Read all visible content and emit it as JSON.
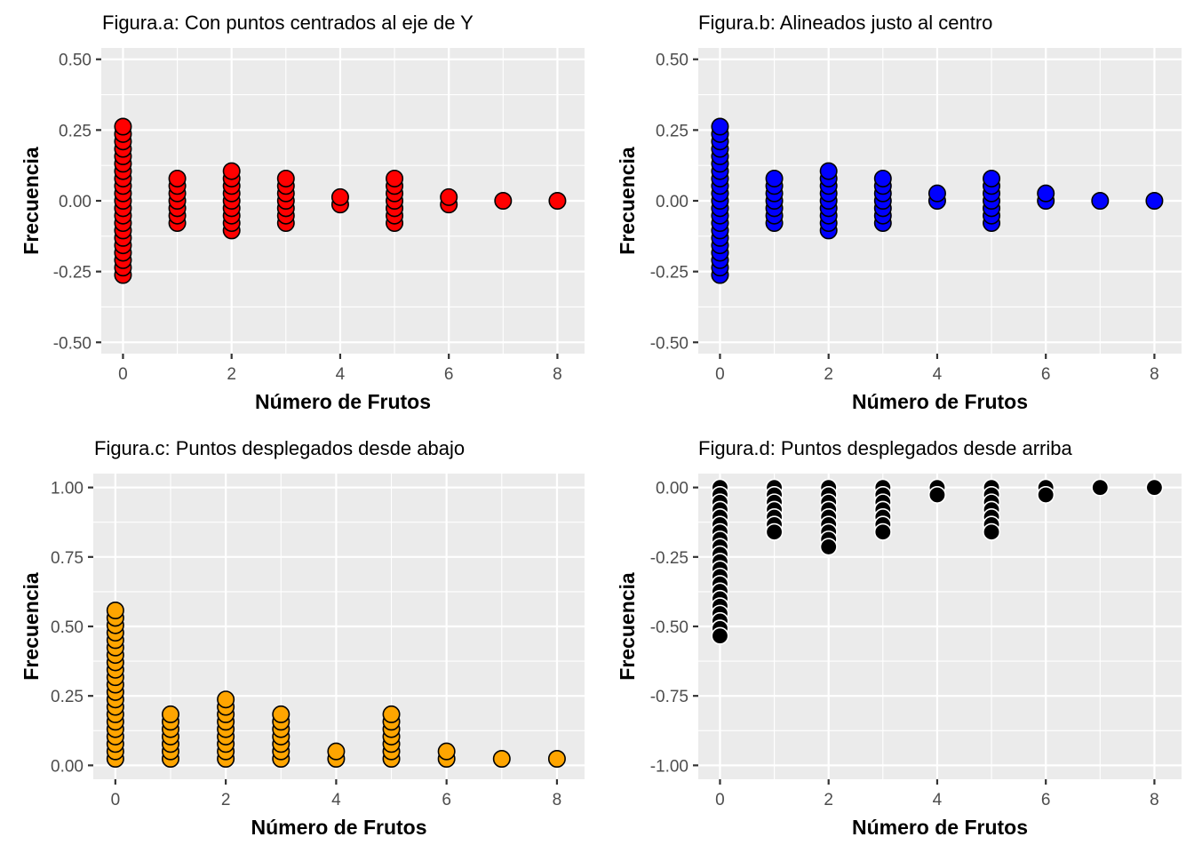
{
  "chart_data": [
    {
      "type": "scatter",
      "title": "Figura.a: Con puntos centrados al eje de Y",
      "xlabel": "Número de Frutos",
      "ylabel": "Frecuencia",
      "xlim": [
        -0.4,
        8.5
      ],
      "ylim": [
        -0.54,
        0.54
      ],
      "xticks": [
        0,
        2,
        4,
        6,
        8
      ],
      "xtick_labels": [
        "0",
        "2",
        "4",
        "6",
        "8"
      ],
      "yticks": [
        -0.5,
        -0.25,
        0,
        0.25,
        0.5
      ],
      "ytick_labels": [
        "-0.50",
        "-0.25",
        "0.00",
        "0.25",
        "0.50"
      ],
      "grid": true,
      "fill": "#ff0000",
      "stroke": "#000000",
      "stack": "center",
      "counts": [
        {
          "x": 0,
          "n": 21
        },
        {
          "x": 1,
          "n": 7
        },
        {
          "x": 2,
          "n": 9
        },
        {
          "x": 3,
          "n": 7
        },
        {
          "x": 4,
          "n": 2
        },
        {
          "x": 5,
          "n": 7
        },
        {
          "x": 6,
          "n": 2
        },
        {
          "x": 7,
          "n": 1
        },
        {
          "x": 8,
          "n": 1
        }
      ]
    },
    {
      "type": "scatter",
      "title": "Figura.b: Alineados justo al centro",
      "xlabel": "Número de Frutos",
      "ylabel": "Frecuencia",
      "xlim": [
        -0.4,
        8.5
      ],
      "ylim": [
        -0.54,
        0.54
      ],
      "xticks": [
        0,
        2,
        4,
        6,
        8
      ],
      "xtick_labels": [
        "0",
        "2",
        "4",
        "6",
        "8"
      ],
      "yticks": [
        -0.5,
        -0.25,
        0,
        0.25,
        0.5
      ],
      "ytick_labels": [
        "-0.50",
        "-0.25",
        "0.00",
        "0.25",
        "0.50"
      ],
      "grid": true,
      "fill": "#0000ff",
      "stroke": "#000000",
      "stack": "centerwhole",
      "counts": [
        {
          "x": 0,
          "n": 21
        },
        {
          "x": 1,
          "n": 7
        },
        {
          "x": 2,
          "n": 9
        },
        {
          "x": 3,
          "n": 7
        },
        {
          "x": 4,
          "n": 2
        },
        {
          "x": 5,
          "n": 7
        },
        {
          "x": 6,
          "n": 2
        },
        {
          "x": 7,
          "n": 1
        },
        {
          "x": 8,
          "n": 1
        }
      ]
    },
    {
      "type": "scatter",
      "title": "Figura.c: Puntos desplegados desde abajo",
      "xlabel": "Número de Frutos",
      "ylabel": "Frecuencia",
      "xlim": [
        -0.4,
        8.5
      ],
      "ylim": [
        -0.05,
        1.05
      ],
      "xticks": [
        0,
        2,
        4,
        6,
        8
      ],
      "xtick_labels": [
        "0",
        "2",
        "4",
        "6",
        "8"
      ],
      "yticks": [
        0,
        0.25,
        0.5,
        0.75,
        1.0
      ],
      "ytick_labels": [
        "0.00",
        "0.25",
        "0.50",
        "0.75",
        "1.00"
      ],
      "grid": true,
      "fill": "#ffa500",
      "stroke": "#000000",
      "stack": "up",
      "counts": [
        {
          "x": 0,
          "n": 21
        },
        {
          "x": 1,
          "n": 7
        },
        {
          "x": 2,
          "n": 9
        },
        {
          "x": 3,
          "n": 7
        },
        {
          "x": 4,
          "n": 2
        },
        {
          "x": 5,
          "n": 7
        },
        {
          "x": 6,
          "n": 2
        },
        {
          "x": 7,
          "n": 1
        },
        {
          "x": 8,
          "n": 1
        }
      ]
    },
    {
      "type": "scatter",
      "title": "Figura.d: Puntos desplegados desde arriba",
      "xlabel": "Número de Frutos",
      "ylabel": "Frecuencia",
      "xlim": [
        -0.4,
        8.5
      ],
      "ylim": [
        -1.05,
        0.05
      ],
      "xticks": [
        0,
        2,
        4,
        6,
        8
      ],
      "xtick_labels": [
        "0",
        "2",
        "4",
        "6",
        "8"
      ],
      "yticks": [
        -1.0,
        -0.75,
        -0.5,
        -0.25,
        0
      ],
      "ytick_labels": [
        "-1.00",
        "-0.75",
        "-0.50",
        "-0.25",
        "0.00"
      ],
      "grid": true,
      "fill": "#000000",
      "stroke": "#ffffff",
      "stack": "down",
      "counts": [
        {
          "x": 0,
          "n": 21
        },
        {
          "x": 1,
          "n": 7
        },
        {
          "x": 2,
          "n": 9
        },
        {
          "x": 3,
          "n": 7
        },
        {
          "x": 4,
          "n": 2
        },
        {
          "x": 5,
          "n": 7
        },
        {
          "x": 6,
          "n": 2
        },
        {
          "x": 7,
          "n": 1
        },
        {
          "x": 8,
          "n": 1
        }
      ]
    }
  ]
}
